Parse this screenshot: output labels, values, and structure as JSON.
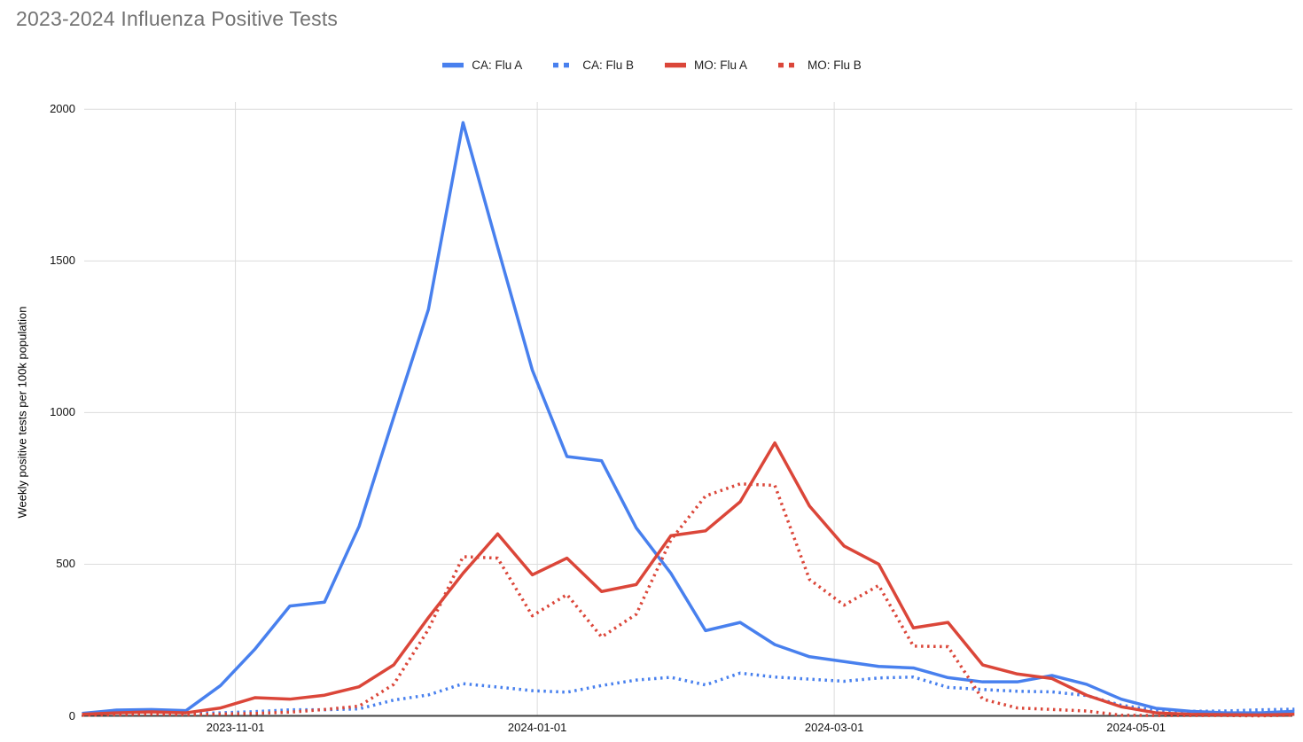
{
  "title": "2023-2024 Influenza Positive Tests",
  "legend": [
    {
      "label": "CA: Flu A",
      "color": "#4880EE",
      "style": "solid"
    },
    {
      "label": "CA: Flu B",
      "color": "#4880EE",
      "style": "dotted"
    },
    {
      "label": "MO: Flu A",
      "color": "#DB4639",
      "style": "solid"
    },
    {
      "label": "MO: Flu B",
      "color": "#DB4639",
      "style": "dotted"
    }
  ],
  "colors": {
    "blue": "#4880EE",
    "red": "#DB4639",
    "gridline": "#DCDCDC",
    "axis_line": "#424242",
    "title_text": "#737373",
    "tick_text": "#111111"
  },
  "chart_data": {
    "type": "line",
    "title": "2023-2024 Influenza Positive Tests",
    "xlabel": "",
    "ylabel": "Weekly positive tests per 100k population",
    "ylim": [
      0,
      2000
    ],
    "y_ticks": [
      0,
      500,
      1000,
      1500,
      2000
    ],
    "x_axis_ticks": [
      "2023-11-01",
      "2024-01-01",
      "2024-03-01",
      "2024-05-01"
    ],
    "grid": "both",
    "legend_position": "top-center",
    "x": [
      "2023-10-01",
      "2023-10-08",
      "2023-10-15",
      "2023-10-22",
      "2023-10-29",
      "2023-11-05",
      "2023-11-12",
      "2023-11-19",
      "2023-11-26",
      "2023-12-03",
      "2023-12-10",
      "2023-12-17",
      "2023-12-24",
      "2023-12-31",
      "2024-01-07",
      "2024-01-14",
      "2024-01-21",
      "2024-01-28",
      "2024-02-04",
      "2024-02-11",
      "2024-02-18",
      "2024-02-25",
      "2024-03-03",
      "2024-03-10",
      "2024-03-17",
      "2024-03-24",
      "2024-03-31",
      "2024-04-07",
      "2024-04-14",
      "2024-04-21",
      "2024-04-28",
      "2024-05-05",
      "2024-05-12",
      "2024-05-19",
      "2024-05-26",
      "2024-06-02"
    ],
    "series": [
      {
        "name": "CA: Flu A",
        "color": "#4880EE",
        "style": "solid",
        "values": [
          8,
          19,
          21,
          17,
          100,
          221,
          362,
          375,
          625,
          985,
          1340,
          1956,
          1545,
          1140,
          855,
          841,
          620,
          470,
          281,
          308,
          235,
          195,
          179,
          163,
          158,
          126,
          112,
          112,
          133,
          104,
          55,
          25,
          15,
          10,
          10,
          15
        ]
      },
      {
        "name": "CA: Flu B",
        "color": "#4880EE",
        "style": "dotted",
        "values": [
          3,
          6,
          8,
          8,
          10,
          14,
          20,
          20,
          23,
          52,
          69,
          106,
          95,
          83,
          78,
          100,
          118,
          127,
          102,
          141,
          128,
          121,
          114,
          125,
          128,
          94,
          87,
          81,
          79,
          67,
          35,
          18,
          15,
          16,
          20,
          22
        ]
      },
      {
        "name": "MO: Flu A",
        "color": "#DB4639",
        "style": "solid",
        "values": [
          5,
          10,
          13,
          10,
          26,
          60,
          55,
          68,
          96,
          168,
          324,
          470,
          600,
          465,
          520,
          410,
          433,
          594,
          610,
          706,
          900,
          692,
          560,
          500,
          290,
          308,
          168,
          138,
          123,
          68,
          30,
          10,
          5,
          4,
          3,
          5
        ]
      },
      {
        "name": "MO: Flu B",
        "color": "#DB4639",
        "style": "dotted",
        "values": [
          2,
          4,
          6,
          4,
          6,
          8,
          12,
          21,
          32,
          104,
          285,
          525,
          520,
          330,
          400,
          260,
          335,
          580,
          725,
          765,
          760,
          450,
          365,
          430,
          230,
          228,
          55,
          26,
          21,
          16,
          2,
          1,
          1,
          1,
          0,
          2
        ]
      }
    ]
  }
}
